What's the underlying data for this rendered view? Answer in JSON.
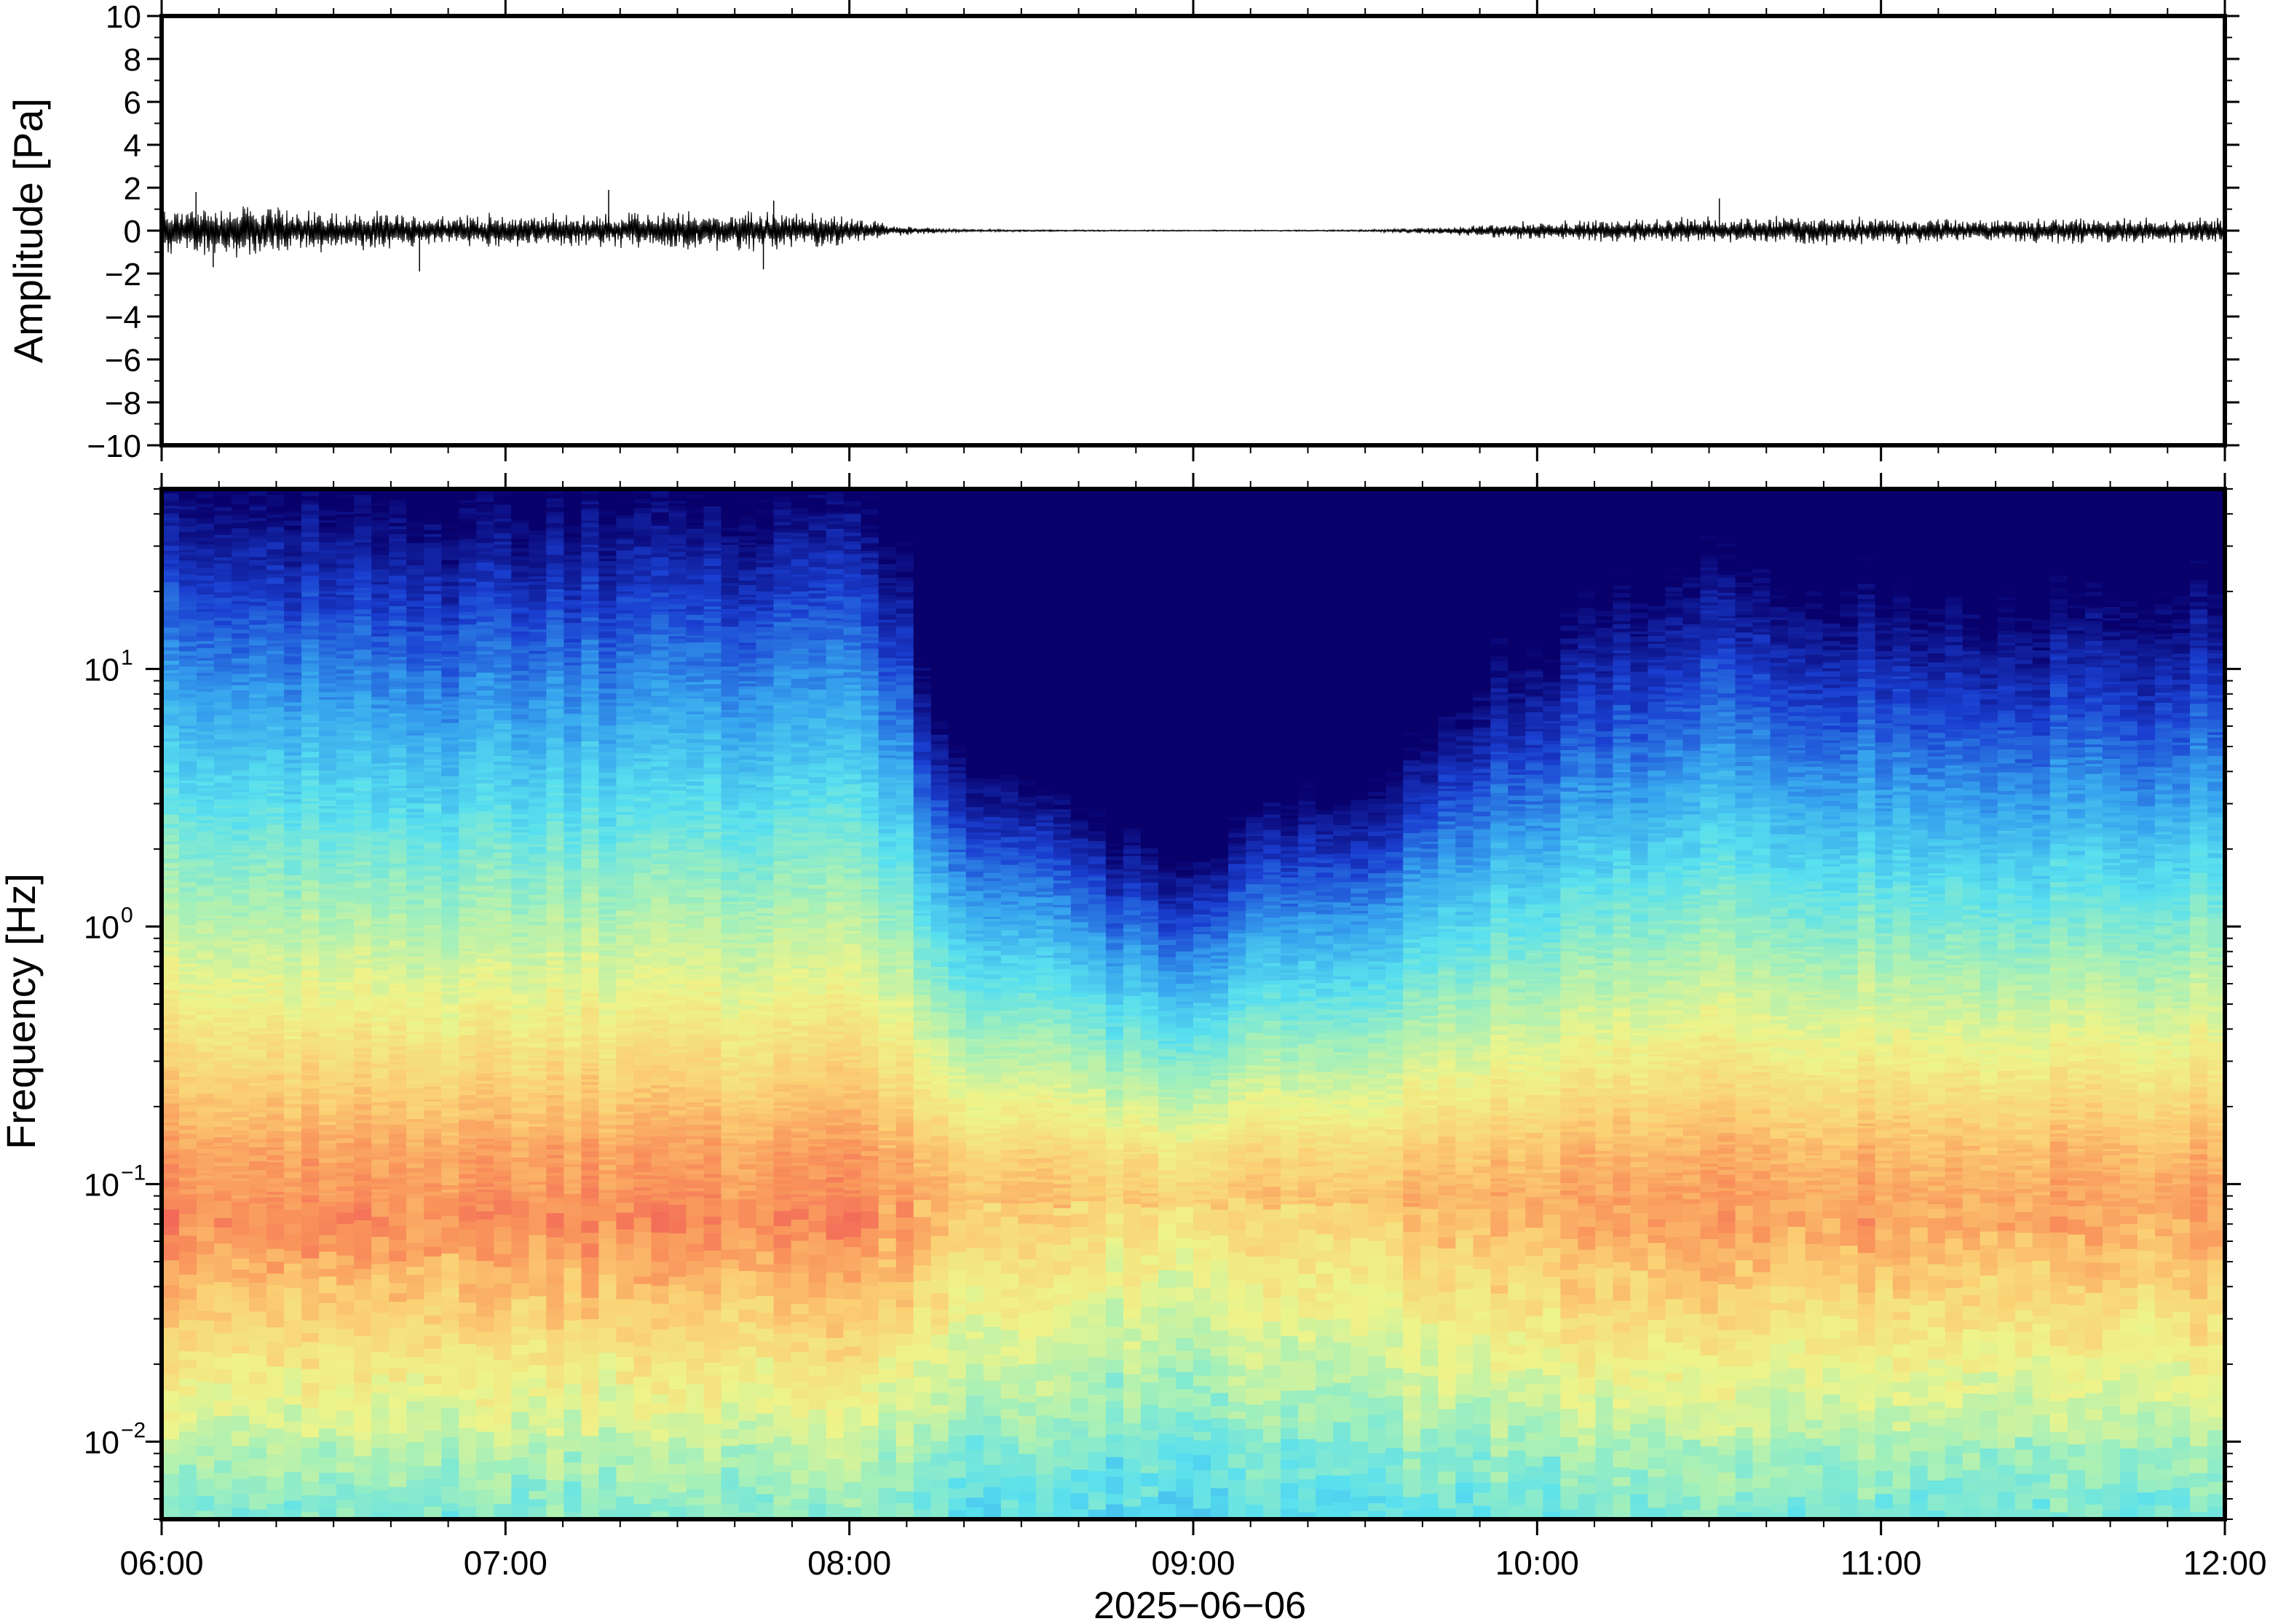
{
  "chart_data": [
    {
      "type": "line",
      "panel": "waveform",
      "ylabel": "Amplitude [Pa]",
      "ylim": [
        -10,
        10
      ],
      "yticks": [
        10,
        8,
        6,
        4,
        2,
        0,
        -2,
        -4,
        -6,
        -8,
        -10
      ],
      "ytick_labels": [
        "10",
        "8",
        "6",
        "4",
        "2",
        "0",
        "−2",
        "−4",
        "−6",
        "−8",
        "−10"
      ],
      "xlim": [
        "06:00",
        "12:00"
      ],
      "envelope": {
        "hours": [
          6.0,
          6.25,
          6.5,
          6.75,
          7.0,
          7.25,
          7.5,
          7.75,
          8.0,
          8.15,
          8.3,
          8.5,
          8.75,
          9.0,
          9.25,
          9.5,
          9.75,
          10.0,
          10.25,
          10.5,
          10.75,
          11.0,
          11.25,
          11.5,
          11.75,
          12.0
        ],
        "amplitude": [
          0.7,
          0.8,
          0.6,
          0.5,
          0.5,
          0.5,
          0.6,
          0.6,
          0.45,
          0.15,
          0.05,
          0.03,
          0.02,
          0.02,
          0.02,
          0.03,
          0.12,
          0.3,
          0.35,
          0.4,
          0.45,
          0.4,
          0.35,
          0.4,
          0.4,
          0.4
        ]
      },
      "spikes": [
        {
          "hour": 6.1,
          "value": 1.8
        },
        {
          "hour": 6.15,
          "value": -1.7
        },
        {
          "hour": 6.75,
          "value": -1.9
        },
        {
          "hour": 7.3,
          "value": 1.9
        },
        {
          "hour": 7.75,
          "value": -1.8
        },
        {
          "hour": 7.78,
          "value": 1.4
        },
        {
          "hour": 10.53,
          "value": 1.5
        }
      ]
    },
    {
      "type": "heatmap",
      "panel": "spectrogram",
      "ylabel": "Frequency [Hz]",
      "y_scale": "log",
      "ylim": [
        0.005,
        50
      ],
      "yticks": [
        0.01,
        0.1,
        1,
        10
      ],
      "ytick_labels": [
        {
          "base": "10",
          "exp": "−2"
        },
        {
          "base": "10",
          "exp": "−1"
        },
        {
          "base": "10",
          "exp": "0"
        },
        {
          "base": "10",
          "exp": "1"
        }
      ],
      "xlabel": "2025−06−06",
      "xticks": [
        "06:00",
        "07:00",
        "08:00",
        "09:00",
        "10:00",
        "11:00",
        "12:00"
      ],
      "colormap": [
        "#08006b",
        "#1a3fd1",
        "#36a3ee",
        "#58e0ef",
        "#a6f0b8",
        "#eef48a",
        "#fbd074",
        "#f9925a",
        "#ee4d58"
      ],
      "time_hours": [
        6.0,
        6.25,
        6.5,
        6.75,
        7.0,
        7.25,
        7.5,
        7.75,
        8.0,
        8.15,
        8.25,
        8.5,
        8.75,
        8.9,
        9.05,
        9.2,
        9.35,
        9.5,
        9.65,
        9.8,
        10.0,
        10.25,
        10.5,
        10.75,
        11.0,
        11.25,
        11.5,
        11.75,
        12.0
      ],
      "noise_level": [
        1.0,
        1.0,
        0.98,
        0.95,
        0.97,
        0.97,
        0.96,
        0.98,
        0.97,
        0.9,
        0.58,
        0.44,
        0.3,
        0.16,
        0.2,
        0.34,
        0.4,
        0.4,
        0.52,
        0.66,
        0.73,
        0.8,
        0.86,
        0.84,
        0.82,
        0.8,
        0.8,
        0.8,
        0.82
      ]
    }
  ]
}
